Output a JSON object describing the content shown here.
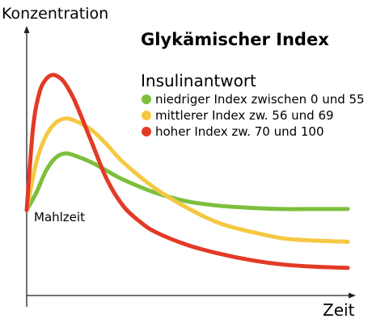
{
  "chart_data": {
    "type": "line",
    "title": "Glykämischer Index",
    "ylabel": "Konzentration",
    "xlabel": "Zeit",
    "legend_title": "Insulinantwort",
    "legend_position": "top-right",
    "grid": false,
    "annotation": "Mahlzeit",
    "xlim": [
      0,
      100
    ],
    "ylim": [
      0,
      100
    ],
    "series": [
      {
        "name": "niedriger Index zwischen 0 und 55",
        "color": "#7cbf3c",
        "x": [
          0,
          3,
          6,
          9,
          12,
          15,
          20,
          25,
          30,
          40,
          50,
          60,
          70,
          80,
          90,
          100
        ],
        "y": [
          34,
          42,
          52,
          58,
          60,
          59,
          56,
          52,
          48,
          42,
          38,
          36,
          35,
          34.5,
          34.5,
          34.5
        ]
      },
      {
        "name": "mittlerer Index zw. 56 und 69",
        "color": "#f5c842",
        "x": [
          0,
          3,
          6,
          9,
          12,
          15,
          20,
          25,
          30,
          40,
          50,
          60,
          70,
          80,
          90,
          100
        ],
        "y": [
          34,
          56,
          68,
          74,
          76,
          75,
          71,
          64,
          56,
          44,
          35,
          28,
          24,
          21,
          20,
          19.5
        ]
      },
      {
        "name": "hoher Index zw. 70 und 100",
        "color": "#e23a26",
        "x": [
          0,
          2,
          4,
          6,
          8,
          10,
          12,
          15,
          20,
          25,
          30,
          35,
          40,
          50,
          60,
          70,
          80,
          90,
          100
        ],
        "y": [
          34,
          72,
          88,
          94,
          96,
          95,
          92,
          84,
          66,
          48,
          36,
          29,
          24,
          18,
          14,
          11,
          9,
          8,
          7.5
        ]
      }
    ]
  }
}
